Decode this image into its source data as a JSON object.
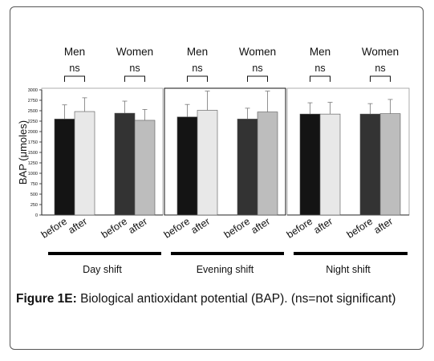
{
  "caption": {
    "label": "Figure 1E:",
    "text": "Biological antioxidant potential (BAP). (ns=not significant)"
  },
  "chart_data": {
    "type": "bar",
    "ylabel": "BAP (μmoles)",
    "ylim": [
      0,
      3000
    ],
    "yticks": [
      "0",
      "250",
      "500",
      "750",
      "1000",
      "1250",
      "1500",
      "1750",
      "2000",
      "2250",
      "2500",
      "2750",
      "3000"
    ],
    "grid": false,
    "panels": [
      {
        "name": "Day shift",
        "groups": [
          {
            "name": "Men",
            "sig": "ns",
            "bars": [
              {
                "label": "before",
                "value": 2300,
                "error": 340,
                "color": "#141414"
              },
              {
                "label": "after",
                "value": 2480,
                "error": 330,
                "color": "#e8e8e8"
              }
            ]
          },
          {
            "name": "Women",
            "sig": "ns",
            "bars": [
              {
                "label": "before",
                "value": 2440,
                "error": 290,
                "color": "#333333"
              },
              {
                "label": "after",
                "value": 2270,
                "error": 260,
                "color": "#bdbdbd"
              }
            ]
          }
        ]
      },
      {
        "name": "Evening shift",
        "groups": [
          {
            "name": "Men",
            "sig": "ns",
            "bars": [
              {
                "label": "before",
                "value": 2350,
                "error": 300,
                "color": "#141414"
              },
              {
                "label": "after",
                "value": 2510,
                "error": 460,
                "color": "#e8e8e8"
              }
            ]
          },
          {
            "name": "Women",
            "sig": "ns",
            "bars": [
              {
                "label": "before",
                "value": 2300,
                "error": 260,
                "color": "#333333"
              },
              {
                "label": "after",
                "value": 2470,
                "error": 500,
                "color": "#bdbdbd"
              }
            ]
          }
        ]
      },
      {
        "name": "Night shift",
        "groups": [
          {
            "name": "Men",
            "sig": "ns",
            "bars": [
              {
                "label": "before",
                "value": 2420,
                "error": 270,
                "color": "#141414"
              },
              {
                "label": "after",
                "value": 2420,
                "error": 280,
                "color": "#e8e8e8"
              }
            ]
          },
          {
            "name": "Women",
            "sig": "ns",
            "bars": [
              {
                "label": "before",
                "value": 2420,
                "error": 250,
                "color": "#333333"
              },
              {
                "label": "after",
                "value": 2430,
                "error": 340,
                "color": "#bdbdbd"
              }
            ]
          }
        ]
      }
    ]
  }
}
